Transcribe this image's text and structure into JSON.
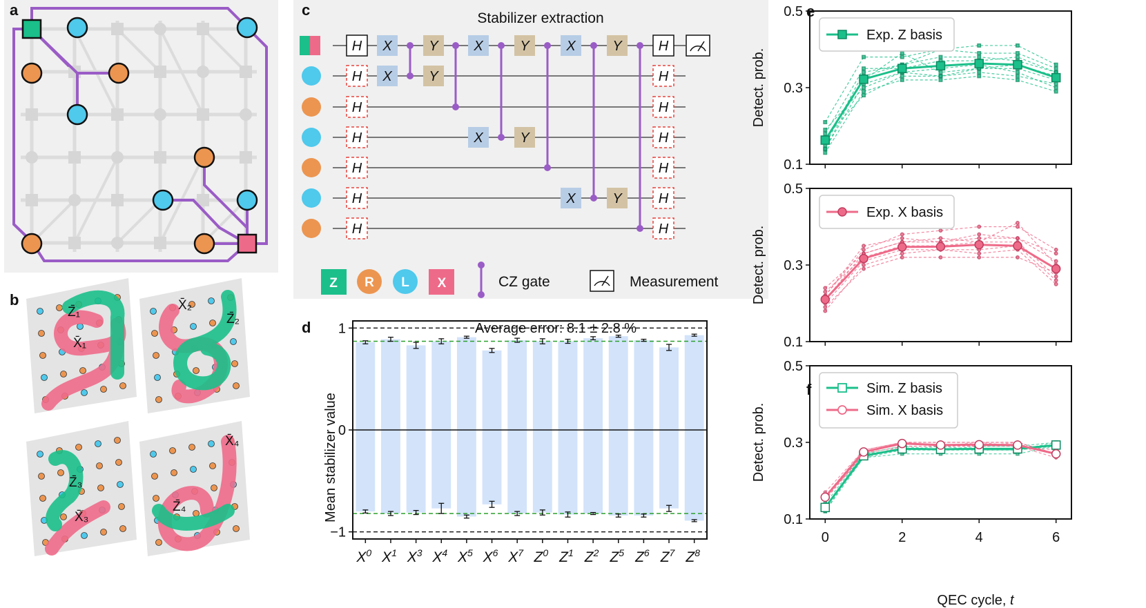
{
  "panel_labels": {
    "a": "a",
    "b": "b",
    "c": "c",
    "d": "d",
    "e": "e",
    "f": "f"
  },
  "colors": {
    "green": "#1bbf8a",
    "pink": "#ee6a89",
    "orange": "#ec9550",
    "cyan": "#4fc9ec",
    "purple": "#9a5cc6",
    "bar": "#d2e3fa",
    "x_gate": "#b7cde6",
    "y_gate": "#d3c3a4"
  },
  "panel_b": {
    "tiles": [
      {
        "z": "Z̄₁",
        "x": "X̄₁"
      },
      {
        "x": "X̄₂",
        "z": "Z̄₂"
      },
      {
        "z": "Z̄₃",
        "x": "X̄₃"
      },
      {
        "x": "X̄₄",
        "z": "Z̄₄"
      }
    ]
  },
  "panel_c": {
    "title": "Stabilizer extraction",
    "gate_labels": {
      "h": "H",
      "x": "X",
      "y": "Y"
    },
    "legend": {
      "z": "Z",
      "r": "R",
      "l": "L",
      "x": "X",
      "cz": "CZ gate",
      "measure": "Measurement"
    }
  },
  "chart_data": [
    {
      "panel": "d",
      "type": "bar",
      "title": "Average error: 8.1 ± 2.8 %",
      "ylabel": "Mean stabilizer value",
      "categories": [
        "X0",
        "X1",
        "X3",
        "X4",
        "X5",
        "X6",
        "X7",
        "Z0",
        "Z1",
        "Z2",
        "Z5",
        "Z6",
        "Z7",
        "Z8"
      ],
      "category_labels": [
        {
          "base": "X",
          "sup": "0"
        },
        {
          "base": "X",
          "sup": "1"
        },
        {
          "base": "X",
          "sup": "3"
        },
        {
          "base": "X",
          "sup": "4"
        },
        {
          "base": "X",
          "sup": "5"
        },
        {
          "base": "X",
          "sup": "6"
        },
        {
          "base": "X",
          "sup": "7"
        },
        {
          "base": "Z",
          "sup": "0"
        },
        {
          "base": "Z",
          "sup": "1"
        },
        {
          "base": "Z",
          "sup": "2"
        },
        {
          "base": "Z",
          "sup": "5"
        },
        {
          "base": "Z",
          "sup": "6"
        },
        {
          "base": "Z",
          "sup": "7"
        },
        {
          "base": "Z",
          "sup": "8"
        }
      ],
      "series": [
        {
          "values": [
            0.86,
            0.89,
            0.83,
            0.87,
            0.91,
            0.78,
            0.88,
            0.87,
            0.87,
            0.9,
            0.92,
            0.88,
            0.81,
            0.93
          ],
          "errors": [
            0.015,
            0.02,
            0.03,
            0.025,
            0.01,
            0.02,
            0.02,
            0.025,
            0.02,
            0.015,
            0.01,
            0.01,
            0.03,
            0.01
          ]
        },
        {
          "values": [
            -0.8,
            -0.82,
            -0.81,
            -0.77,
            -0.85,
            -0.73,
            -0.82,
            -0.81,
            -0.83,
            -0.82,
            -0.84,
            -0.84,
            -0.77,
            -0.89
          ],
          "errors": [
            0.015,
            0.02,
            0.02,
            0.05,
            0.015,
            0.03,
            0.02,
            0.025,
            0.025,
            0.01,
            0.015,
            0.015,
            0.03,
            0.01
          ]
        }
      ],
      "reference_lines": [
        1,
        0.87,
        -0.82,
        -1
      ],
      "ylim": [
        -1.07,
        1.07
      ],
      "yticks": [
        -1,
        0,
        1
      ],
      "ytick_labels": [
        "−1",
        "0",
        "1"
      ]
    },
    {
      "panel": "e (top)",
      "type": "line",
      "ylabel": "Detect. prob.",
      "x": [
        0,
        1,
        2,
        3,
        4,
        5,
        6
      ],
      "xlim": [
        -0.4,
        6.4
      ],
      "ylim": [
        0.1,
        0.5
      ],
      "yticks": [
        0.1,
        0.3,
        0.5
      ],
      "legend_position": "top-left",
      "series": [
        {
          "name": "Exp. Z basis",
          "values": [
            0.163,
            0.322,
            0.35,
            0.357,
            0.363,
            0.36,
            0.326
          ]
        }
      ],
      "background_series": [
        [
          0.19,
          0.3,
          0.34,
          0.33,
          0.34,
          0.33,
          0.31
        ],
        [
          0.15,
          0.34,
          0.36,
          0.38,
          0.38,
          0.37,
          0.34
        ],
        [
          0.17,
          0.28,
          0.33,
          0.33,
          0.35,
          0.35,
          0.32
        ],
        [
          0.21,
          0.38,
          0.38,
          0.4,
          0.41,
          0.41,
          0.36
        ],
        [
          0.14,
          0.33,
          0.36,
          0.4,
          0.39,
          0.39,
          0.35
        ],
        [
          0.13,
          0.29,
          0.32,
          0.32,
          0.33,
          0.32,
          0.29
        ],
        [
          0.18,
          0.35,
          0.35,
          0.37,
          0.37,
          0.38,
          0.34
        ],
        [
          0.14,
          0.31,
          0.34,
          0.35,
          0.36,
          0.34,
          0.3
        ],
        [
          0.16,
          0.32,
          0.39,
          0.34,
          0.35,
          0.36,
          0.33
        ]
      ]
    },
    {
      "panel": "e (bottom)",
      "type": "line",
      "ylabel": "Detect. prob.",
      "x": [
        0,
        1,
        2,
        3,
        4,
        5,
        6
      ],
      "xlim": [
        -0.4,
        6.4
      ],
      "ylim": [
        0.1,
        0.5
      ],
      "yticks": [
        0.1,
        0.3,
        0.5
      ],
      "legend_position": "top-left",
      "series": [
        {
          "name": "Exp. X basis",
          "values": [
            0.21,
            0.317,
            0.347,
            0.348,
            0.353,
            0.35,
            0.29
          ]
        }
      ],
      "background_series": [
        [
          0.24,
          0.33,
          0.36,
          0.36,
          0.37,
          0.37,
          0.33
        ],
        [
          0.18,
          0.3,
          0.33,
          0.34,
          0.34,
          0.35,
          0.26
        ],
        [
          0.22,
          0.34,
          0.38,
          0.39,
          0.4,
          0.4,
          0.34
        ],
        [
          0.2,
          0.31,
          0.34,
          0.34,
          0.33,
          0.34,
          0.25
        ],
        [
          0.23,
          0.32,
          0.35,
          0.35,
          0.36,
          0.41,
          0.3
        ],
        [
          0.19,
          0.29,
          0.32,
          0.32,
          0.32,
          0.32,
          0.28
        ],
        [
          0.22,
          0.35,
          0.37,
          0.36,
          0.38,
          0.37,
          0.31
        ],
        [
          0.21,
          0.33,
          0.36,
          0.37,
          0.36,
          0.36,
          0.27
        ]
      ]
    },
    {
      "panel": "f",
      "type": "line",
      "ylabel": "Detect. prob.",
      "xlabel": "QEC cycle, t",
      "xlabel_parts": {
        "text": "QEC cycle, ",
        "italic": "t"
      },
      "x": [
        0,
        1,
        2,
        3,
        4,
        5,
        6
      ],
      "xticks": [
        0,
        2,
        4,
        6
      ],
      "xlim": [
        -0.4,
        6.4
      ],
      "ylim": [
        0.1,
        0.5
      ],
      "yticks": [
        0.1,
        0.3,
        0.5
      ],
      "legend_position": "top-left",
      "series": [
        {
          "name": "Sim. Z basis",
          "values": [
            0.13,
            0.265,
            0.283,
            0.282,
            0.283,
            0.283,
            0.293
          ]
        },
        {
          "name": "Sim. X basis",
          "values": [
            0.157,
            0.275,
            0.297,
            0.293,
            0.294,
            0.293,
            0.27
          ]
        }
      ],
      "background_series_z": [
        [
          0.12,
          0.26,
          0.28,
          0.28,
          0.28,
          0.28,
          0.29
        ],
        [
          0.14,
          0.27,
          0.29,
          0.28,
          0.29,
          0.29,
          0.3
        ],
        [
          0.13,
          0.26,
          0.27,
          0.27,
          0.27,
          0.27,
          0.29
        ],
        [
          0.12,
          0.27,
          0.28,
          0.29,
          0.28,
          0.28,
          0.3
        ]
      ],
      "background_series_x": [
        [
          0.16,
          0.28,
          0.3,
          0.3,
          0.3,
          0.3,
          0.27
        ],
        [
          0.15,
          0.27,
          0.29,
          0.29,
          0.29,
          0.29,
          0.26
        ],
        [
          0.17,
          0.28,
          0.3,
          0.29,
          0.3,
          0.29,
          0.28
        ],
        [
          0.16,
          0.26,
          0.29,
          0.29,
          0.29,
          0.3,
          0.27
        ],
        [
          0.15,
          0.27,
          0.3,
          0.3,
          0.3,
          0.3,
          0.27
        ]
      ]
    }
  ]
}
